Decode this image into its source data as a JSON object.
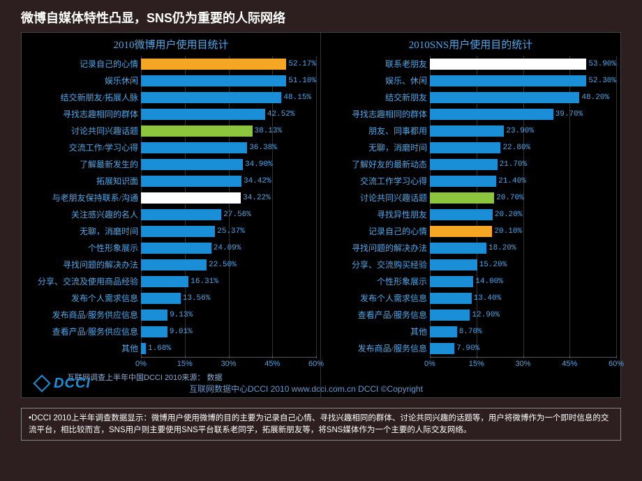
{
  "page": {
    "title": "微博自媒体特性凸显，SNS仍为重要的人际网络",
    "bg_color": "#2d1f1f",
    "chart_bg": "#000000",
    "text_color": "#4fa8e8",
    "grid_color": "#333333"
  },
  "chart_left": {
    "title": "2010微博用户使用目统计",
    "type": "bar-horizontal",
    "xmax": 60,
    "xticks": [
      0,
      15,
      30,
      45,
      60
    ],
    "default_color": "#1a8fd8",
    "items": [
      {
        "label": "记录自己的心情",
        "value": 52.17,
        "color": "#f5a623"
      },
      {
        "label": "娱乐休闲",
        "value": 51.1
      },
      {
        "label": "结交新朋友/拓展人脉",
        "value": 48.15
      },
      {
        "label": "寻找志趣相同的群体",
        "value": 42.52
      },
      {
        "label": "讨论共同兴趣话题",
        "value": 38.13,
        "color": "#8cc63f"
      },
      {
        "label": "交流工作/学习心得",
        "value": 36.38
      },
      {
        "label": "了解最新发生的",
        "value": 34.9
      },
      {
        "label": "拓展知识面",
        "value": 34.42
      },
      {
        "label": "与老朋友保持联系/沟通",
        "value": 34.22,
        "color": "#ffffff"
      },
      {
        "label": "关注感兴趣的名人",
        "value": 27.56
      },
      {
        "label": "无聊，消磨时间",
        "value": 25.37
      },
      {
        "label": "个性形象展示",
        "value": 24.09
      },
      {
        "label": "寻找问题的解决办法",
        "value": 22.5
      },
      {
        "label": "分享、交流及使用商品经验",
        "value": 16.31
      },
      {
        "label": "发布个人需求信息",
        "value": 13.56
      },
      {
        "label": "发布商品/服务供应信息",
        "value": 9.13
      },
      {
        "label": "查看产品/服务供应信息",
        "value": 9.01
      },
      {
        "label": "其他",
        "value": 1.68
      }
    ]
  },
  "chart_right": {
    "title": "2010SNS用户使用目的统计",
    "type": "bar-horizontal",
    "xmax": 60,
    "xticks": [
      0,
      15,
      30,
      45,
      60
    ],
    "default_color": "#1a8fd8",
    "items": [
      {
        "label": "联系老朋友",
        "value": 53.9,
        "color": "#ffffff"
      },
      {
        "label": "娱乐、休闲",
        "value": 52.3
      },
      {
        "label": "结交新朋友",
        "value": 48.2
      },
      {
        "label": "寻找志趣相同的群体",
        "value": 39.7
      },
      {
        "label": "朋友、同事都用",
        "value": 23.9
      },
      {
        "label": "无聊，消磨时间",
        "value": 22.8
      },
      {
        "label": "了解好友的最新动态",
        "value": 21.7
      },
      {
        "label": "交流工作学习心得",
        "value": 21.4
      },
      {
        "label": "讨论共同兴趣话题",
        "value": 20.7,
        "color": "#8cc63f"
      },
      {
        "label": "寻找异性朋友",
        "value": 20.2
      },
      {
        "label": "记录自己的心情",
        "value": 20.1,
        "color": "#f5a623"
      },
      {
        "label": "寻找问题的解决办法",
        "value": 18.2
      },
      {
        "label": "分享、交流购买经验",
        "value": 15.2
      },
      {
        "label": "个性形象展示",
        "value": 14.0
      },
      {
        "label": "发布个人需求信息",
        "value": 13.4
      },
      {
        "label": "查看产品/服务信息",
        "value": 12.9
      },
      {
        "label": "其他",
        "value": 8.7
      },
      {
        "label": "发布商品/服务信息",
        "value": 7.9
      }
    ]
  },
  "source": {
    "line1": "互联网调查上半年中国DCCI 2010来源：         数据",
    "line2": "互联网数据中心DCCI 2010    www.dcci.com.cn      DCCI ©Copyright",
    "logo_text": "DCCI",
    "logo_color": "#1a8fd8"
  },
  "footnote": "•DCCI 2010上半年调查数据显示：微博用户使用微博的目的主要为记录自己心情、寻找兴趣相同的群体、讨论共同兴趣的话题等，用户将微博作为一个即时信息的交流平台，相比较而言，SNS用户则主要使用SNS平台联系老同学，拓展新朋友等，将SNS媒体作为一个主要的人际交友网络。"
}
